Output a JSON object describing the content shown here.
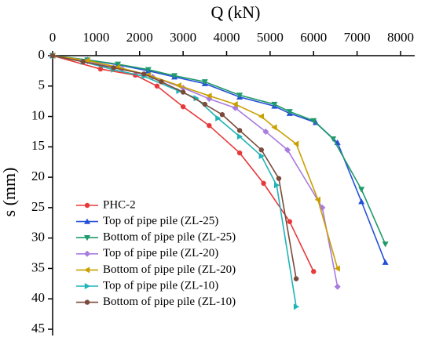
{
  "chart_data": {
    "type": "line",
    "x_label": "Q (kN)",
    "y_label": "s (mm)",
    "xlim": [
      0,
      8000
    ],
    "xticks": [
      0,
      1000,
      2000,
      3000,
      4000,
      5000,
      6000,
      7000,
      8000
    ],
    "ylim": [
      0,
      45
    ],
    "yticks": [
      0,
      5,
      10,
      15,
      20,
      25,
      30,
      35,
      40,
      45
    ],
    "y_inverted": true,
    "x_axis_position": "top",
    "legend": "lower left",
    "series": [
      {
        "name": "PHC-2",
        "color": "#e8393a",
        "marker": "circle",
        "x": [
          0,
          1100,
          1900,
          2400,
          3000,
          3600,
          4300,
          4850,
          5450,
          6000
        ],
        "values": [
          0,
          2.2,
          3.2,
          5,
          8.4,
          11.5,
          16,
          21,
          27.3,
          35.5
        ]
      },
      {
        "name": "Top of pipe pile (ZL-25)",
        "color": "#2450d8",
        "marker": "triangle-up",
        "x": [
          0,
          800,
          1500,
          2200,
          2800,
          3500,
          4300,
          5100,
          5450,
          6050,
          6550,
          7100,
          7650
        ],
        "values": [
          0,
          0.7,
          1.5,
          2.5,
          3.5,
          4.6,
          6.8,
          8.3,
          9.5,
          11,
          14.3,
          24,
          34
        ]
      },
      {
        "name": "Bottom of pipe pile (ZL-25)",
        "color": "#1f9a6a",
        "marker": "triangle-down",
        "x": [
          0,
          800,
          1500,
          2200,
          2800,
          3500,
          4300,
          5100,
          5450,
          6000,
          6450,
          7100,
          7650
        ],
        "values": [
          0,
          0.7,
          1.4,
          2.3,
          3.3,
          4.3,
          6.5,
          8,
          9.2,
          10.7,
          13.7,
          22,
          31
        ]
      },
      {
        "name": "Top of pipe pile (ZL-20)",
        "color": "#a77be0",
        "marker": "diamond",
        "x": [
          0,
          800,
          1600,
          2300,
          3000,
          3600,
          4200,
          4900,
          5400,
          6200,
          6550
        ],
        "values": [
          0,
          0.9,
          2.2,
          3.5,
          5.3,
          7.1,
          8.6,
          12.5,
          15.5,
          25,
          38
        ]
      },
      {
        "name": "Bottom of pipe pile (ZL-20)",
        "color": "#c9a000",
        "marker": "triangle-left",
        "x": [
          0,
          800,
          1500,
          2200,
          2900,
          3600,
          4200,
          4800,
          5100,
          5600,
          6100,
          6550
        ],
        "values": [
          0,
          0.8,
          1.9,
          3.2,
          4.9,
          6.6,
          8,
          10,
          11.8,
          14.5,
          23.7,
          35
        ]
      },
      {
        "name": "Top of pipe pile (ZL-10)",
        "color": "#20b3b8",
        "marker": "triangle-right",
        "x": [
          0,
          700,
          1400,
          2100,
          2900,
          3300,
          3800,
          4300,
          4800,
          5150,
          5600
        ],
        "values": [
          0,
          1,
          2.3,
          3.4,
          5.8,
          7,
          10.3,
          13.3,
          16.5,
          21.3,
          41.3
        ]
      },
      {
        "name": "Bottom of pipe pile (ZL-10)",
        "color": "#7b4a3a",
        "marker": "circle",
        "x": [
          0,
          700,
          1400,
          2100,
          2500,
          3000,
          3500,
          3900,
          4300,
          4800,
          5200,
          5600
        ],
        "values": [
          0,
          1,
          2,
          3,
          4.3,
          6,
          8,
          9.7,
          12.3,
          15.5,
          20.2,
          36.7
        ]
      }
    ]
  }
}
